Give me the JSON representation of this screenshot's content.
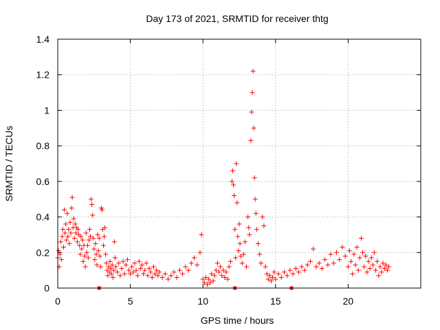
{
  "chart_data": {
    "type": "scatter",
    "title": "Day 173 of 2021, SRMTID for receiver thtg",
    "xlabel": "GPS time / hours",
    "ylabel": "SRMTID / TECUs",
    "xlim": [
      0,
      25
    ],
    "ylim": [
      0,
      1.4
    ],
    "xticks": [
      0,
      5,
      10,
      15,
      20
    ],
    "xtick_labels": [
      "0",
      "5",
      "10",
      "15",
      "20"
    ],
    "yticks": [
      0,
      0.2,
      0.4,
      0.6,
      0.8,
      1.0,
      1.2,
      1.4
    ],
    "ytick_labels": [
      "0",
      "0.2",
      "0.4",
      "0.6",
      "0.8",
      "1",
      "1.2",
      "1.4"
    ],
    "grid": true,
    "marker": "+",
    "color": "#ff0000",
    "series": [
      {
        "name": "SRMTID",
        "points": [
          [
            0.0,
            0.17
          ],
          [
            0.05,
            0.21
          ],
          [
            0.1,
            0.12
          ],
          [
            0.15,
            0.19
          ],
          [
            0.2,
            0.26
          ],
          [
            0.25,
            0.16
          ],
          [
            0.3,
            0.29
          ],
          [
            0.35,
            0.33
          ],
          [
            0.4,
            0.23
          ],
          [
            0.45,
            0.44
          ],
          [
            0.5,
            0.31
          ],
          [
            0.55,
            0.36
          ],
          [
            0.6,
            0.27
          ],
          [
            0.65,
            0.42
          ],
          [
            0.7,
            0.29
          ],
          [
            0.75,
            0.33
          ],
          [
            0.8,
            0.25
          ],
          [
            0.85,
            0.37
          ],
          [
            0.9,
            0.31
          ],
          [
            0.95,
            0.45
          ],
          [
            1.0,
            0.51
          ],
          [
            1.05,
            0.34
          ],
          [
            1.1,
            0.39
          ],
          [
            1.15,
            0.28
          ],
          [
            1.2,
            0.36
          ],
          [
            1.25,
            0.31
          ],
          [
            1.3,
            0.34
          ],
          [
            1.35,
            0.26
          ],
          [
            1.4,
            0.33
          ],
          [
            1.45,
            0.3
          ],
          [
            1.5,
            0.24
          ],
          [
            1.55,
            0.19
          ],
          [
            1.6,
            0.29
          ],
          [
            1.65,
            0.22
          ],
          [
            1.7,
            0.27
          ],
          [
            1.75,
            0.15
          ],
          [
            1.8,
            0.24
          ],
          [
            1.85,
            0.18
          ],
          [
            1.9,
            0.12
          ],
          [
            1.95,
            0.31
          ],
          [
            2.0,
            0.2
          ],
          [
            2.05,
            0.24
          ],
          [
            2.1,
            0.17
          ],
          [
            2.15,
            0.27
          ],
          [
            2.2,
            0.33
          ],
          [
            2.25,
            0.29
          ],
          [
            2.3,
            0.5
          ],
          [
            2.35,
            0.47
          ],
          [
            2.4,
            0.41
          ],
          [
            2.45,
            0.28
          ],
          [
            2.5,
            0.22
          ],
          [
            2.55,
            0.16
          ],
          [
            2.6,
            0.25
          ],
          [
            2.65,
            0.19
          ],
          [
            2.7,
            0.13
          ],
          [
            2.75,
            0.3
          ],
          [
            2.8,
            0.21
          ],
          [
            2.85,
            0.28
          ],
          [
            2.9,
            0.18
          ],
          [
            2.95,
            0.12
          ],
          [
            3.0,
            0.45
          ],
          [
            3.05,
            0.44
          ],
          [
            3.1,
            0.33
          ],
          [
            3.15,
            0.24
          ],
          [
            3.2,
            0.29
          ],
          [
            3.25,
            0.34
          ],
          [
            3.3,
            0.19
          ],
          [
            3.35,
            0.14
          ],
          [
            3.4,
            0.1
          ],
          [
            3.45,
            0.07
          ],
          [
            3.5,
            0.12
          ],
          [
            3.55,
            0.09
          ],
          [
            3.6,
            0.15
          ],
          [
            3.65,
            0.11
          ],
          [
            3.7,
            0.08
          ],
          [
            3.75,
            0.13
          ],
          [
            3.8,
            0.06
          ],
          [
            3.85,
            0.1
          ],
          [
            3.9,
            0.26
          ],
          [
            3.95,
            0.17
          ],
          [
            4.0,
            0.12
          ],
          [
            4.1,
            0.09
          ],
          [
            4.2,
            0.14
          ],
          [
            4.3,
            0.07
          ],
          [
            4.4,
            0.11
          ],
          [
            4.5,
            0.15
          ],
          [
            4.6,
            0.08
          ],
          [
            4.7,
            0.13
          ],
          [
            4.8,
            0.16
          ],
          [
            4.9,
            0.1
          ],
          [
            5.0,
            0.08
          ],
          [
            5.1,
            0.12
          ],
          [
            5.2,
            0.09
          ],
          [
            5.3,
            0.14
          ],
          [
            5.4,
            0.1
          ],
          [
            5.5,
            0.07
          ],
          [
            5.6,
            0.15
          ],
          [
            5.7,
            0.11
          ],
          [
            5.8,
            0.13
          ],
          [
            5.9,
            0.08
          ],
          [
            6.0,
            0.1
          ],
          [
            6.1,
            0.14
          ],
          [
            6.2,
            0.07
          ],
          [
            6.3,
            0.11
          ],
          [
            6.4,
            0.09
          ],
          [
            6.5,
            0.06
          ],
          [
            6.6,
            0.12
          ],
          [
            6.7,
            0.08
          ],
          [
            6.8,
            0.1
          ],
          [
            6.9,
            0.07
          ],
          [
            7.0,
            0.09
          ],
          [
            7.2,
            0.06
          ],
          [
            7.4,
            0.08
          ],
          [
            7.6,
            0.05
          ],
          [
            7.8,
            0.07
          ],
          [
            8.0,
            0.09
          ],
          [
            8.2,
            0.06
          ],
          [
            8.4,
            0.1
          ],
          [
            8.6,
            0.08
          ],
          [
            8.8,
            0.12
          ],
          [
            9.0,
            0.1
          ],
          [
            9.2,
            0.14
          ],
          [
            9.4,
            0.17
          ],
          [
            9.6,
            0.13
          ],
          [
            9.8,
            0.2
          ],
          [
            9.9,
            0.3
          ],
          [
            10.0,
            0.05
          ],
          [
            10.1,
            0.03
          ],
          [
            10.2,
            0.06
          ],
          [
            10.3,
            0.02
          ],
          [
            10.4,
            0.05
          ],
          [
            10.5,
            0.03
          ],
          [
            10.6,
            0.08
          ],
          [
            10.7,
            0.04
          ],
          [
            10.8,
            0.07
          ],
          [
            10.9,
            0.1
          ],
          [
            11.0,
            0.14
          ],
          [
            11.1,
            0.09
          ],
          [
            11.2,
            0.12
          ],
          [
            11.3,
            0.07
          ],
          [
            11.4,
            0.1
          ],
          [
            11.5,
            0.06
          ],
          [
            11.6,
            0.09
          ],
          [
            11.7,
            0.05
          ],
          [
            11.8,
            0.12
          ],
          [
            11.9,
            0.15
          ],
          [
            12.0,
            0.6
          ],
          [
            12.05,
            0.66
          ],
          [
            12.1,
            0.58
          ],
          [
            12.15,
            0.52
          ],
          [
            12.2,
            0.33
          ],
          [
            12.25,
            0.17
          ],
          [
            12.3,
            0.7
          ],
          [
            12.35,
            0.48
          ],
          [
            12.4,
            0.29
          ],
          [
            12.45,
            0.21
          ],
          [
            12.5,
            0.36
          ],
          [
            12.55,
            0.25
          ],
          [
            12.6,
            0.18
          ],
          [
            12.7,
            0.14
          ],
          [
            12.8,
            0.19
          ],
          [
            12.9,
            0.26
          ],
          [
            13.0,
            0.12
          ],
          [
            13.1,
            0.4
          ],
          [
            13.15,
            0.34
          ],
          [
            13.2,
            0.3
          ],
          [
            13.3,
            0.83
          ],
          [
            13.35,
            0.99
          ],
          [
            13.4,
            1.1
          ],
          [
            13.45,
            1.22
          ],
          [
            13.5,
            0.9
          ],
          [
            13.55,
            0.62
          ],
          [
            13.6,
            0.5
          ],
          [
            13.65,
            0.42
          ],
          [
            13.7,
            0.33
          ],
          [
            13.8,
            0.25
          ],
          [
            13.9,
            0.19
          ],
          [
            14.0,
            0.14
          ],
          [
            14.1,
            0.4
          ],
          [
            14.2,
            0.35
          ],
          [
            14.3,
            0.12
          ],
          [
            14.4,
            0.08
          ],
          [
            14.5,
            0.05
          ],
          [
            14.6,
            0.07
          ],
          [
            14.7,
            0.04
          ],
          [
            14.8,
            0.06
          ],
          [
            14.9,
            0.09
          ],
          [
            15.0,
            0.05
          ],
          [
            15.2,
            0.08
          ],
          [
            15.4,
            0.06
          ],
          [
            15.6,
            0.09
          ],
          [
            15.8,
            0.07
          ],
          [
            16.0,
            0.1
          ],
          [
            16.2,
            0.08
          ],
          [
            16.4,
            0.11
          ],
          [
            16.6,
            0.09
          ],
          [
            16.8,
            0.12
          ],
          [
            17.0,
            0.1
          ],
          [
            17.2,
            0.13
          ],
          [
            17.4,
            0.15
          ],
          [
            17.6,
            0.22
          ],
          [
            17.8,
            0.12
          ],
          [
            18.0,
            0.14
          ],
          [
            18.2,
            0.11
          ],
          [
            18.4,
            0.16
          ],
          [
            18.6,
            0.13
          ],
          [
            18.8,
            0.19
          ],
          [
            19.0,
            0.14
          ],
          [
            19.2,
            0.2
          ],
          [
            19.4,
            0.16
          ],
          [
            19.6,
            0.23
          ],
          [
            19.8,
            0.18
          ],
          [
            20.0,
            0.12
          ],
          [
            20.1,
            0.21
          ],
          [
            20.2,
            0.15
          ],
          [
            20.3,
            0.08
          ],
          [
            20.4,
            0.19
          ],
          [
            20.5,
            0.13
          ],
          [
            20.6,
            0.23
          ],
          [
            20.7,
            0.1
          ],
          [
            20.8,
            0.17
          ],
          [
            20.9,
            0.28
          ],
          [
            21.0,
            0.2
          ],
          [
            21.1,
            0.12
          ],
          [
            21.2,
            0.18
          ],
          [
            21.3,
            0.09
          ],
          [
            21.4,
            0.15
          ],
          [
            21.5,
            0.11
          ],
          [
            21.6,
            0.17
          ],
          [
            21.7,
            0.13
          ],
          [
            21.8,
            0.2
          ],
          [
            21.9,
            0.1
          ],
          [
            22.0,
            0.15
          ],
          [
            22.1,
            0.07
          ],
          [
            22.2,
            0.12
          ],
          [
            22.3,
            0.09
          ],
          [
            22.4,
            0.14
          ],
          [
            22.5,
            0.11
          ],
          [
            22.6,
            0.13
          ],
          [
            22.7,
            0.1
          ],
          [
            22.8,
            0.12
          ]
        ]
      }
    ],
    "baseline_markers": [
      2.85,
      12.2,
      16.1
    ]
  }
}
